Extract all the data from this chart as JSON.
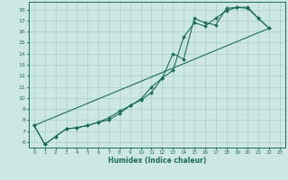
{
  "xlabel": "Humidex (Indice chaleur)",
  "xlim": [
    -0.5,
    23.5
  ],
  "ylim": [
    5.5,
    18.7
  ],
  "background_color": "#cde8e4",
  "line_color": "#1e6b5c",
  "grid_color": "#a8cec8",
  "line1_x": [
    0,
    1,
    2,
    3,
    4,
    5,
    6,
    7,
    8,
    9,
    10,
    11,
    12,
    13,
    14,
    15,
    16,
    17,
    18,
    19,
    20,
    21,
    22
  ],
  "line1_y": [
    7.5,
    5.8,
    6.5,
    7.2,
    7.3,
    7.5,
    7.8,
    8.0,
    8.6,
    9.3,
    9.8,
    10.5,
    11.8,
    14.0,
    13.5,
    17.2,
    16.8,
    16.6,
    18.1,
    18.2,
    18.1,
    17.2,
    16.3
  ],
  "line2_x": [
    0,
    1,
    2,
    3,
    4,
    5,
    6,
    7,
    8,
    9,
    10,
    11,
    12,
    13,
    14,
    15,
    16,
    17,
    18,
    19,
    20,
    21,
    22
  ],
  "line2_y": [
    7.5,
    5.8,
    6.5,
    7.2,
    7.3,
    7.5,
    7.8,
    8.2,
    8.8,
    9.3,
    9.9,
    11.0,
    11.8,
    12.5,
    15.5,
    16.8,
    16.5,
    17.2,
    17.9,
    18.2,
    18.2,
    17.2,
    16.3
  ],
  "line3_x": [
    0,
    22
  ],
  "line3_y": [
    7.5,
    16.3
  ],
  "yticks": [
    6,
    7,
    8,
    9,
    10,
    11,
    12,
    13,
    14,
    15,
    16,
    17,
    18
  ],
  "xticks": [
    0,
    1,
    2,
    3,
    4,
    5,
    6,
    7,
    8,
    9,
    10,
    11,
    12,
    13,
    14,
    15,
    16,
    17,
    18,
    19,
    20,
    21,
    22,
    23
  ]
}
